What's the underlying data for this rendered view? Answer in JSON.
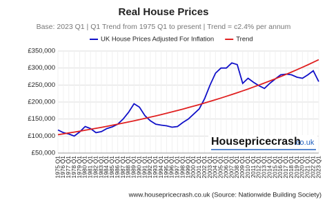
{
  "chart_data": {
    "type": "line",
    "title": "Real House Prices",
    "subtitle": "Base: 2023 Q1 | Q1 Trend from 1975 Q1 to present | Trend = c2.4% per annum",
    "categories": [
      "1975 Q1",
      "1976 Q1",
      "1977 Q1",
      "1978 Q1",
      "1979 Q1",
      "1980 Q1",
      "1981 Q1",
      "1982 Q1",
      "1983 Q1",
      "1984 Q1",
      "1985 Q1",
      "1986 Q1",
      "1987 Q1",
      "1988 Q1",
      "1989 Q1",
      "1990 Q1",
      "1991 Q1",
      "1992 Q1",
      "1993 Q1",
      "1994 Q1",
      "1995 Q1",
      "1996 Q1",
      "1997 Q1",
      "1998 Q1",
      "1999 Q1",
      "2000 Q1",
      "2001 Q1",
      "2002 Q1",
      "2003 Q1",
      "2004 Q1",
      "2005 Q1",
      "2006 Q1",
      "2007 Q1",
      "2008 Q1",
      "2009 Q1",
      "2010 Q1",
      "2011 Q1",
      "2012 Q1",
      "2013 Q1",
      "2014 Q1",
      "2015 Q1",
      "2016 Q1",
      "2017 Q1",
      "2018 Q1",
      "2019 Q1",
      "2020 Q1",
      "2021 Q1",
      "2022 Q1",
      "2023 Q1"
    ],
    "series": [
      {
        "name": "UK House Prices Adjusted For Inflation",
        "color": "#1010c8",
        "values": [
          118000,
          110000,
          106000,
          100000,
          112000,
          128000,
          122000,
          110000,
          113000,
          122000,
          127000,
          135000,
          150000,
          170000,
          195000,
          185000,
          160000,
          145000,
          135000,
          132000,
          130000,
          126000,
          128000,
          140000,
          150000,
          165000,
          180000,
          210000,
          250000,
          285000,
          300000,
          300000,
          315000,
          310000,
          255000,
          270000,
          258000,
          248000,
          240000,
          255000,
          268000,
          280000,
          282000,
          280000,
          273000,
          270000,
          280000,
          292000,
          260000
        ]
      },
      {
        "name": "Trend",
        "color": "#e02020",
        "values": [
          104000,
          106500,
          109100,
          111700,
          114300,
          117100,
          119900,
          122800,
          125700,
          128700,
          131800,
          135000,
          138200,
          141500,
          144900,
          148400,
          152000,
          155600,
          159300,
          163200,
          167100,
          171100,
          175200,
          179400,
          183700,
          188100,
          192600,
          197200,
          202000,
          206800,
          211800,
          216800,
          222000,
          227400,
          232800,
          238400,
          244100,
          250000,
          256000,
          262100,
          268400,
          274800,
          281400,
          288200,
          295100,
          302200,
          309400,
          316900,
          324500
        ]
      }
    ],
    "ylim": [
      50000,
      350000
    ],
    "yticks": [
      {
        "value": 50000,
        "label": "£50,000"
      },
      {
        "value": 100000,
        "label": "£100,000"
      },
      {
        "value": 150000,
        "label": "£150,000"
      },
      {
        "value": 200000,
        "label": "£200,000"
      },
      {
        "value": 250000,
        "label": "£250,000"
      },
      {
        "value": 300000,
        "label": "£300,000"
      },
      {
        "value": 350000,
        "label": "£350,000"
      }
    ],
    "grid": true,
    "legend": "top",
    "logo": {
      "name": "Housepricecrash",
      "domain": ".co.uk"
    },
    "source": "www.housepricecrash.co.uk (Source: Nationwide Building Society)"
  }
}
